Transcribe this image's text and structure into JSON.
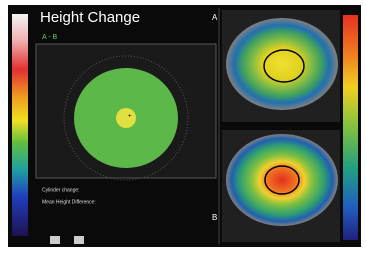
{
  "header": {
    "title": "Height Change",
    "subtitle": "A - B"
  },
  "maps": [
    {
      "label": "A"
    },
    {
      "label": "B"
    }
  ],
  "stats": [
    "Cylinder change:",
    "Mean Height Difference:"
  ]
}
